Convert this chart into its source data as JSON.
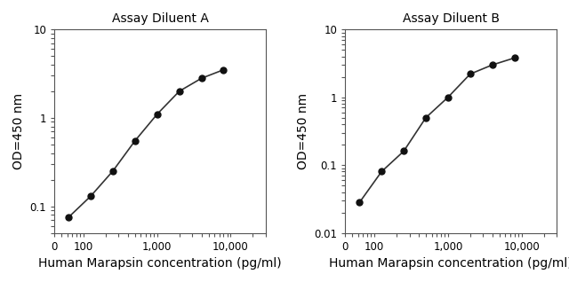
{
  "plot_A": {
    "title": "Assay Diluent A",
    "x": [
      62.5,
      125,
      250,
      500,
      1000,
      2000,
      4000,
      8000
    ],
    "y": [
      0.075,
      0.13,
      0.25,
      0.55,
      1.1,
      2.0,
      2.8,
      3.5
    ],
    "xlim": [
      40,
      30000
    ],
    "ylim": [
      0.05,
      10
    ],
    "yticks": [
      0.1,
      1,
      10
    ],
    "yticklabels": [
      "0.1",
      "1",
      "10"
    ],
    "xticks": [
      100,
      1000,
      10000
    ],
    "xticklabels": [
      "100",
      "1,000",
      "10,000"
    ],
    "xlabel": "Human Marapsin concentration (pg/ml)",
    "ylabel": "OD=450 nm"
  },
  "plot_B": {
    "title": "Assay Diluent B",
    "x": [
      62.5,
      125,
      250,
      500,
      1000,
      2000,
      4000,
      8000
    ],
    "y": [
      0.028,
      0.08,
      0.16,
      0.5,
      1.0,
      2.2,
      3.0,
      3.8
    ],
    "xlim": [
      40,
      30000
    ],
    "ylim": [
      0.01,
      10
    ],
    "yticks": [
      0.01,
      0.1,
      1,
      10
    ],
    "yticklabels": [
      "0.01",
      "0.1",
      "1",
      "10"
    ],
    "xticks": [
      100,
      1000,
      10000
    ],
    "xticklabels": [
      "100",
      "1,000",
      "10,000"
    ],
    "xlabel": "Human Marapsin concentration (pg/ml)",
    "ylabel": "OD=450 nm"
  },
  "line_color": "#333333",
  "marker_color": "#111111",
  "bg_color": "#ffffff",
  "title_fontsize": 10,
  "label_fontsize": 10,
  "tick_fontsize": 8.5
}
